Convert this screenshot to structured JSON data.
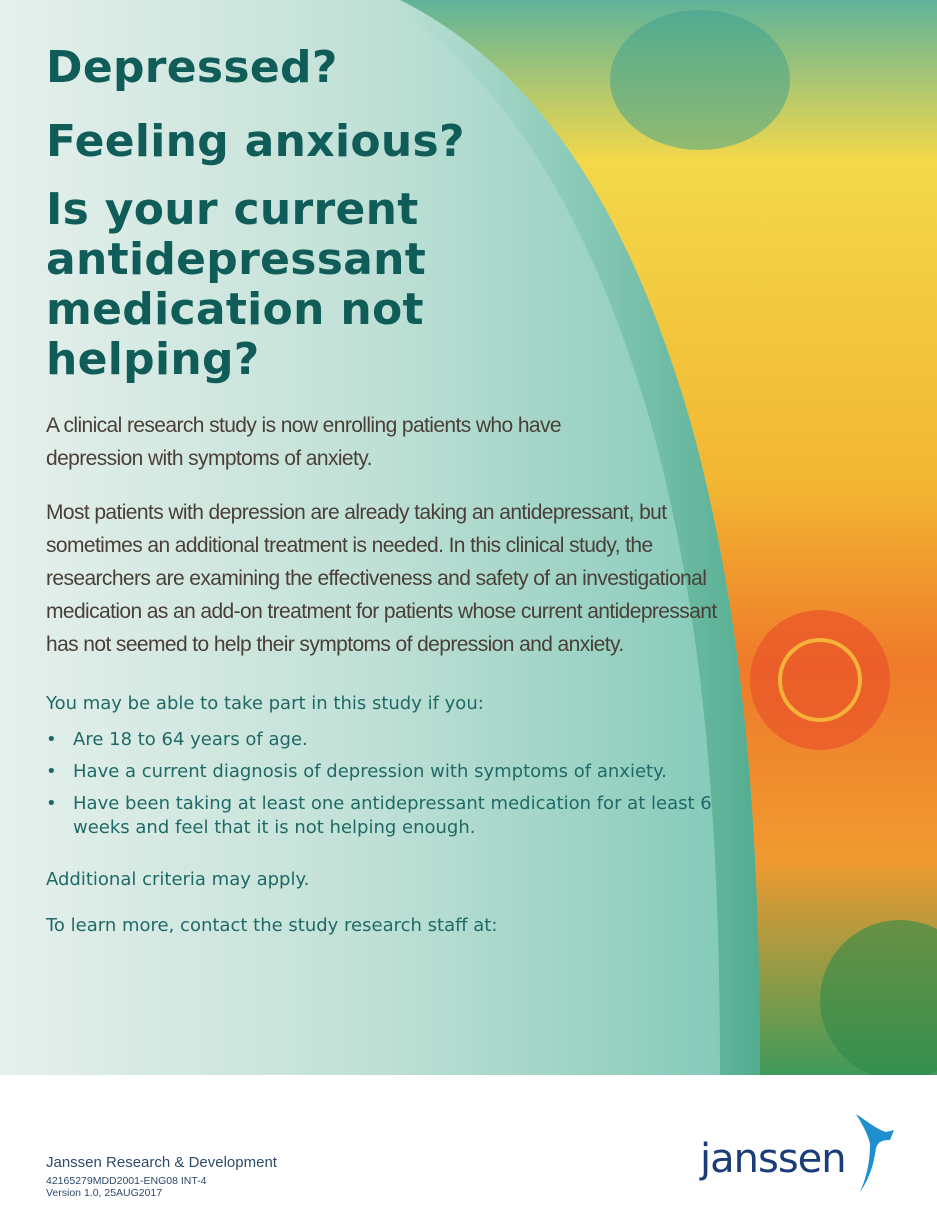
{
  "headline": {
    "line1": "Depressed?",
    "line2": "Feeling anxious?",
    "line3": [
      "Is your current",
      "antidepressant",
      "medication not",
      "helping?"
    ]
  },
  "intro": "A clinical research study is now enrolling patients who have depression with symptoms of anxiety.",
  "description": "Most patients with depression are already taking an antidepressant, but sometimes an additional treatment is needed. In this clinical study, the researchers are examining the effectiveness and safety of an investigational medication as an add-on treatment for patients whose current antidepressant has not seemed to help their symptoms of depression and anxiety.",
  "eligibility": {
    "lead": "You may be able to take part in this study if you:",
    "bullet_glyph": "•",
    "items": [
      "Are 18 to 64 years of age.",
      "Have a current diagnosis of depression with symptoms of anxiety.",
      "Have been taking at least one antidepressant medication for at least 6 weeks and feel that it is not helping enough."
    ]
  },
  "additional": "Additional criteria may apply.",
  "contact": "To learn more, contact the study research staff at:",
  "footer": {
    "organization": "Janssen Research & Development",
    "code": "42165279MDD2001-ENG08 INT-4",
    "version": "Version 1.0, 25AUG2017",
    "logo_text": "janssen"
  },
  "colors": {
    "headline": "#0f5c58",
    "body": "#4a3f38",
    "teal_text": "#1f6a66",
    "logo": "#1a3d7a"
  }
}
